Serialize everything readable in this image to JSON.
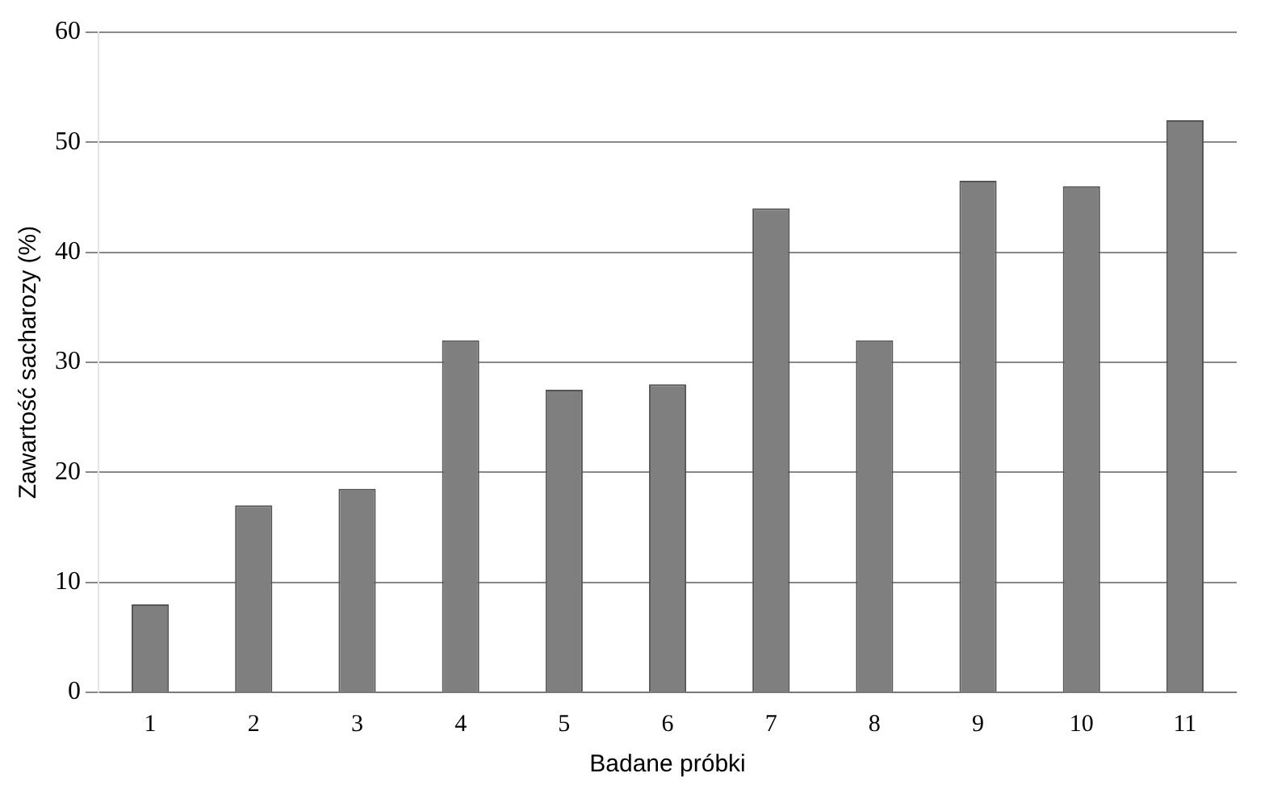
{
  "chart_data": {
    "type": "bar",
    "xlabel": "Badane próbki",
    "ylabel": "Zawartość sacharozy (%)",
    "categories": [
      "1",
      "2",
      "3",
      "4",
      "5",
      "6",
      "7",
      "8",
      "9",
      "10",
      "11"
    ],
    "values": [
      8,
      17,
      18.5,
      32,
      27.5,
      28,
      44,
      32,
      46.5,
      46,
      52
    ],
    "color": "#7f7f7f",
    "ylim": [
      0,
      60
    ],
    "yticks": [
      0,
      10,
      20,
      30,
      40,
      50,
      60
    ],
    "grid": "y",
    "legend": false
  }
}
